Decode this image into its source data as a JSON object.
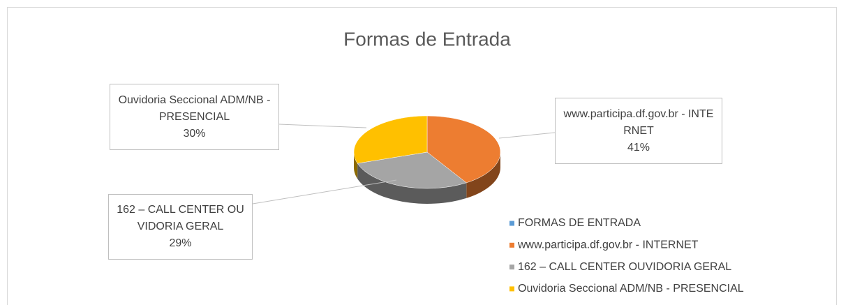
{
  "chart_data": {
    "type": "pie3d",
    "title": "Formas de Entrada",
    "categories": [
      "FORMAS DE ENTRADA",
      "www.participa.df.gov.br - INTERNET",
      "162 – CALL CENTER OUVIDORIA GERAL",
      "Ouvidoria Seccional ADM/NB - PRESENCIAL"
    ],
    "values": [
      0,
      41,
      29,
      30
    ],
    "value_labels": [
      null,
      "41%",
      "29%",
      "30%"
    ],
    "colors": [
      "#5b9bd5",
      "#ed7d31",
      "#a5a5a5",
      "#ffc000"
    ],
    "legend": "bottom-right"
  }
}
